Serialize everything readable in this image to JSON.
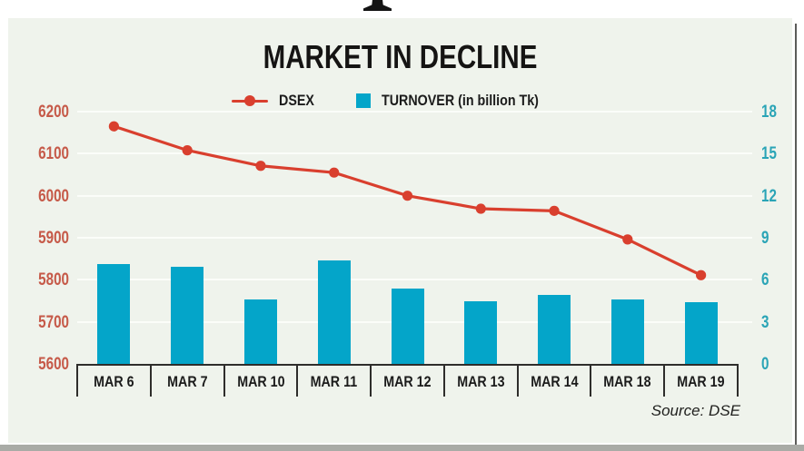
{
  "page": {
    "panel_bg": "#eff3ec",
    "source_note": "Source: DSE"
  },
  "chart_data": {
    "type": "combo",
    "title": "MARKET IN DECLINE",
    "categories": [
      "MAR 6",
      "MAR 7",
      "MAR 10",
      "MAR 11",
      "MAR 12",
      "MAR 13",
      "MAR 14",
      "MAR 18",
      "MAR 19"
    ],
    "series": [
      {
        "name": "DSEX",
        "type": "line",
        "axis": "left",
        "color": "#d93f2e",
        "values": [
          6165,
          6108,
          6071,
          6055,
          6000,
          5969,
          5964,
          5896,
          5811
        ]
      },
      {
        "name": "TURNOVER (in billion Tk)",
        "type": "bar",
        "axis": "right",
        "color": "#04a5c9",
        "values": [
          7.1,
          6.9,
          4.6,
          7.4,
          5.4,
          4.5,
          4.9,
          4.6,
          4.4
        ]
      }
    ],
    "left_axis": {
      "ticks": [
        6200,
        6100,
        6000,
        5900,
        5800,
        5700,
        5600
      ],
      "range": [
        5600,
        6200
      ],
      "label_color": "#c65a49"
    },
    "right_axis": {
      "ticks": [
        18,
        15,
        12,
        9,
        6,
        3,
        0
      ],
      "range": [
        0,
        18
      ],
      "label_color": "#2aa4b6"
    },
    "grid": true,
    "legend_position": "top",
    "source": "Source: DSE"
  }
}
